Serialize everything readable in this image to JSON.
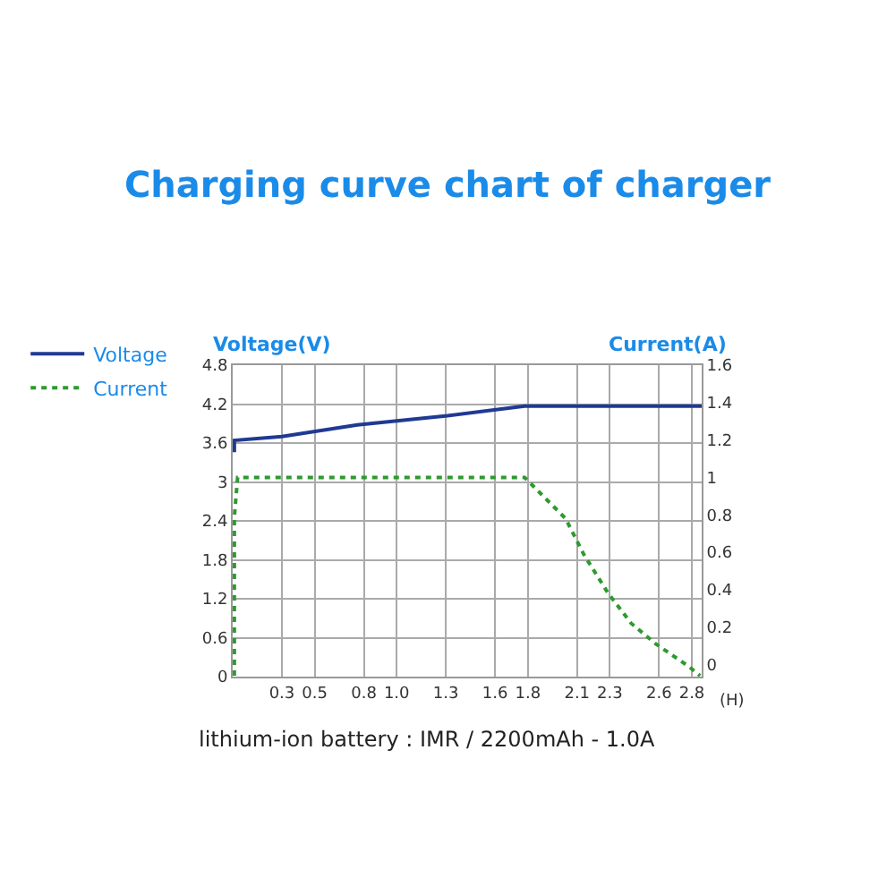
{
  "chart_data": {
    "type": "line",
    "title": "Charging curve chart of charger",
    "xlabel": "(H)",
    "ylabel": "Voltage(V)",
    "y2label": "Current(A)",
    "annotations": [
      "lithium-ion battery : IMR / 2200mAh - 1.0A"
    ],
    "series": [
      {
        "name": "Voltage",
        "color": "#1f3a93",
        "line_style": "solid",
        "x": [
          0.01,
          0.01,
          0.3,
          0.76,
          1.31,
          1.78,
          2.86
        ],
        "values": [
          3.46,
          3.64,
          3.7,
          3.88,
          4.02,
          4.17,
          4.17
        ]
      },
      {
        "name": "Current",
        "color": "#2e9a2e",
        "line_style": "dotted",
        "axis": "y2",
        "x": [
          0.01,
          0.01,
          0.01,
          0.03,
          1.78,
          2.03,
          2.14,
          2.29,
          2.43,
          2.58,
          2.78,
          2.85
        ],
        "values": [
          -0.06,
          0.03,
          0.79,
          1.0,
          1.0,
          0.78,
          0.59,
          0.38,
          0.22,
          0.11,
          -0.01,
          -0.06
        ]
      }
    ],
    "xlim": [
      0,
      2.86
    ],
    "xticks": [
      0.3,
      0.5,
      0.8,
      {
        "value": 1.0,
        "label": "1.0"
      },
      1.3,
      1.6,
      1.8,
      2.1,
      2.3,
      2.6,
      2.8
    ],
    "ylim": [
      0,
      4.8
    ],
    "yticks": [
      0,
      0.6,
      1.2,
      1.8,
      2.4,
      3,
      3.6,
      4.2,
      4.8
    ],
    "y2lim": [
      -0.065,
      1.6
    ],
    "y2ticks": [
      0,
      0.2,
      0.4,
      0.6,
      0.8,
      1,
      1.2,
      1.4,
      1.6
    ],
    "grid": true,
    "legend": "top left"
  }
}
